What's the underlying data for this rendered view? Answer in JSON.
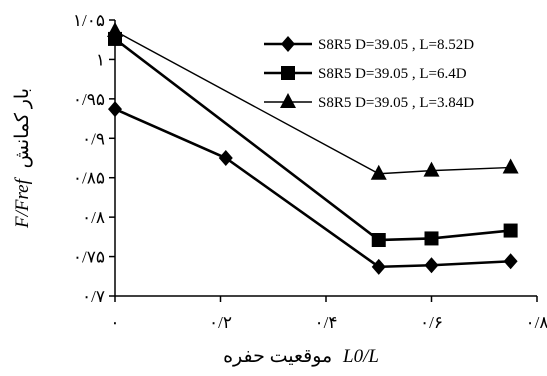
{
  "chart_data": {
    "type": "line",
    "title": "",
    "xlabel_italic": "L0/L",
    "xlabel_text": "موقعیت حفره",
    "ylabel_italic": "F/Fref",
    "ylabel_text": "بار کمانش",
    "xlim": [
      0,
      0.8
    ],
    "ylim": [
      0.7,
      1.05
    ],
    "x_ticks": [
      0,
      0.2,
      0.4,
      0.6,
      0.8
    ],
    "y_ticks": [
      0.7,
      0.75,
      0.8,
      0.85,
      0.9,
      0.95,
      1.0,
      1.05
    ],
    "x_tick_labels": [
      "۰",
      "۰/۲",
      "۰/۴",
      "۰/۶",
      "۰/۸"
    ],
    "y_tick_labels": [
      "۰/۷",
      "۰/۷۵",
      "۰/۸",
      "۰/۸۵",
      "۰/۹",
      "۰/۹۵",
      "۱",
      "۱/۰۵"
    ],
    "grid": false,
    "legend_position": "top-right",
    "series": [
      {
        "name": "S8R5 D=39.05 , L=8.52D",
        "marker": "diamond",
        "line_width": "thick",
        "x": [
          0,
          0.21,
          0.5,
          0.6,
          0.75
        ],
        "y": [
          0.937,
          0.875,
          0.737,
          0.739,
          0.744
        ]
      },
      {
        "name": "S8R5 D=39.05 , L=6.4D",
        "marker": "square",
        "line_width": "thick",
        "x": [
          0,
          0.5,
          0.6,
          0.75
        ],
        "y": [
          1.026,
          0.771,
          0.773,
          0.783
        ]
      },
      {
        "name": "S8R5 D=39.05 , L=3.84D",
        "marker": "triangle",
        "line_width": "thin",
        "x": [
          0,
          0.5,
          0.6,
          0.75
        ],
        "y": [
          1.036,
          0.855,
          0.859,
          0.863
        ]
      }
    ]
  }
}
